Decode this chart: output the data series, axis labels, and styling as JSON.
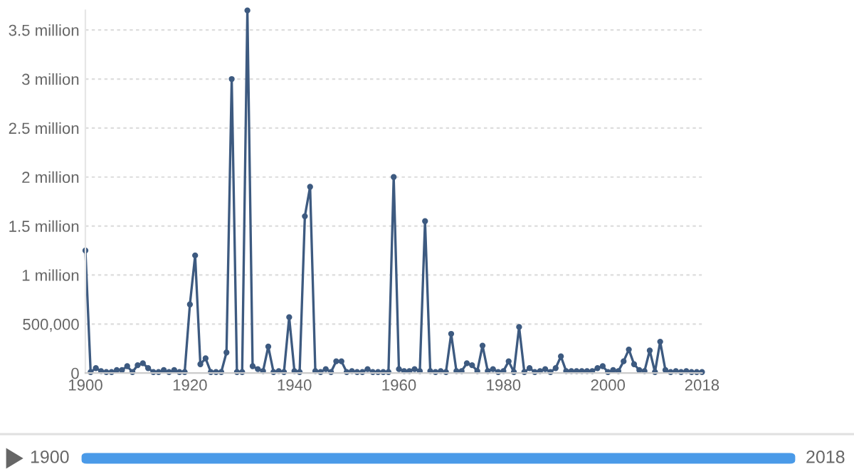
{
  "chart_data": {
    "type": "line",
    "x": [
      1900,
      1901,
      1902,
      1903,
      1904,
      1905,
      1906,
      1907,
      1908,
      1909,
      1910,
      1911,
      1912,
      1913,
      1914,
      1915,
      1916,
      1917,
      1918,
      1919,
      1920,
      1921,
      1922,
      1923,
      1924,
      1925,
      1926,
      1927,
      1928,
      1929,
      1930,
      1931,
      1932,
      1933,
      1934,
      1935,
      1936,
      1937,
      1938,
      1939,
      1940,
      1941,
      1942,
      1943,
      1944,
      1945,
      1946,
      1947,
      1948,
      1949,
      1950,
      1951,
      1952,
      1953,
      1954,
      1955,
      1956,
      1957,
      1958,
      1959,
      1960,
      1961,
      1962,
      1963,
      1964,
      1965,
      1966,
      1967,
      1968,
      1969,
      1970,
      1971,
      1972,
      1973,
      1974,
      1975,
      1976,
      1977,
      1978,
      1979,
      1980,
      1981,
      1982,
      1983,
      1984,
      1985,
      1986,
      1987,
      1988,
      1989,
      1990,
      1991,
      1992,
      1993,
      1994,
      1995,
      1996,
      1997,
      1998,
      1999,
      2000,
      2001,
      2002,
      2003,
      2004,
      2005,
      2006,
      2007,
      2008,
      2009,
      2010,
      2011,
      2012,
      2013,
      2014,
      2015,
      2016,
      2017,
      2018
    ],
    "series": [
      {
        "color": "#3d5a80",
        "values": [
          1250000,
          10000,
          50000,
          20000,
          10000,
          10000,
          30000,
          30000,
          70000,
          10000,
          80000,
          100000,
          50000,
          10000,
          10000,
          30000,
          10000,
          30000,
          10000,
          10000,
          700000,
          1200000,
          90000,
          150000,
          10000,
          10000,
          10000,
          210000,
          3000000,
          10000,
          10000,
          3700000,
          70000,
          40000,
          20000,
          270000,
          10000,
          20000,
          10000,
          570000,
          20000,
          10000,
          1600000,
          1900000,
          20000,
          10000,
          40000,
          10000,
          120000,
          120000,
          10000,
          20000,
          10000,
          10000,
          40000,
          10000,
          10000,
          10000,
          10000,
          2000000,
          40000,
          20000,
          20000,
          40000,
          20000,
          1550000,
          20000,
          10000,
          20000,
          10000,
          400000,
          20000,
          20000,
          100000,
          80000,
          20000,
          280000,
          20000,
          40000,
          10000,
          20000,
          120000,
          10000,
          470000,
          10000,
          50000,
          10000,
          20000,
          40000,
          10000,
          50000,
          170000,
          20000,
          20000,
          20000,
          20000,
          20000,
          20000,
          50000,
          70000,
          10000,
          30000,
          20000,
          120000,
          240000,
          90000,
          30000,
          20000,
          230000,
          10000,
          320000,
          30000,
          10000,
          20000,
          10000,
          20000,
          10000,
          10000,
          10000
        ]
      }
    ],
    "xlim": [
      1900,
      2018
    ],
    "xticks": [
      1900,
      1920,
      1940,
      1960,
      1980,
      2000,
      2018
    ],
    "ylim": [
      0,
      3700000
    ],
    "yticks": [
      0,
      {
        "value": 500000,
        "label": "500,000"
      },
      {
        "value": 1000000,
        "label": "1 million"
      },
      {
        "value": 1500000,
        "label": "1.5 million"
      },
      {
        "value": 2000000,
        "label": "2 million"
      },
      {
        "value": 2500000,
        "label": "2.5 million"
      },
      {
        "value": 3000000,
        "label": "3 million"
      },
      {
        "value": 3500000,
        "label": "3.5 million"
      }
    ],
    "grid": "y",
    "marker": "circle",
    "line_style": "solid",
    "annotations": [
      "1900",
      "2018"
    ]
  }
}
